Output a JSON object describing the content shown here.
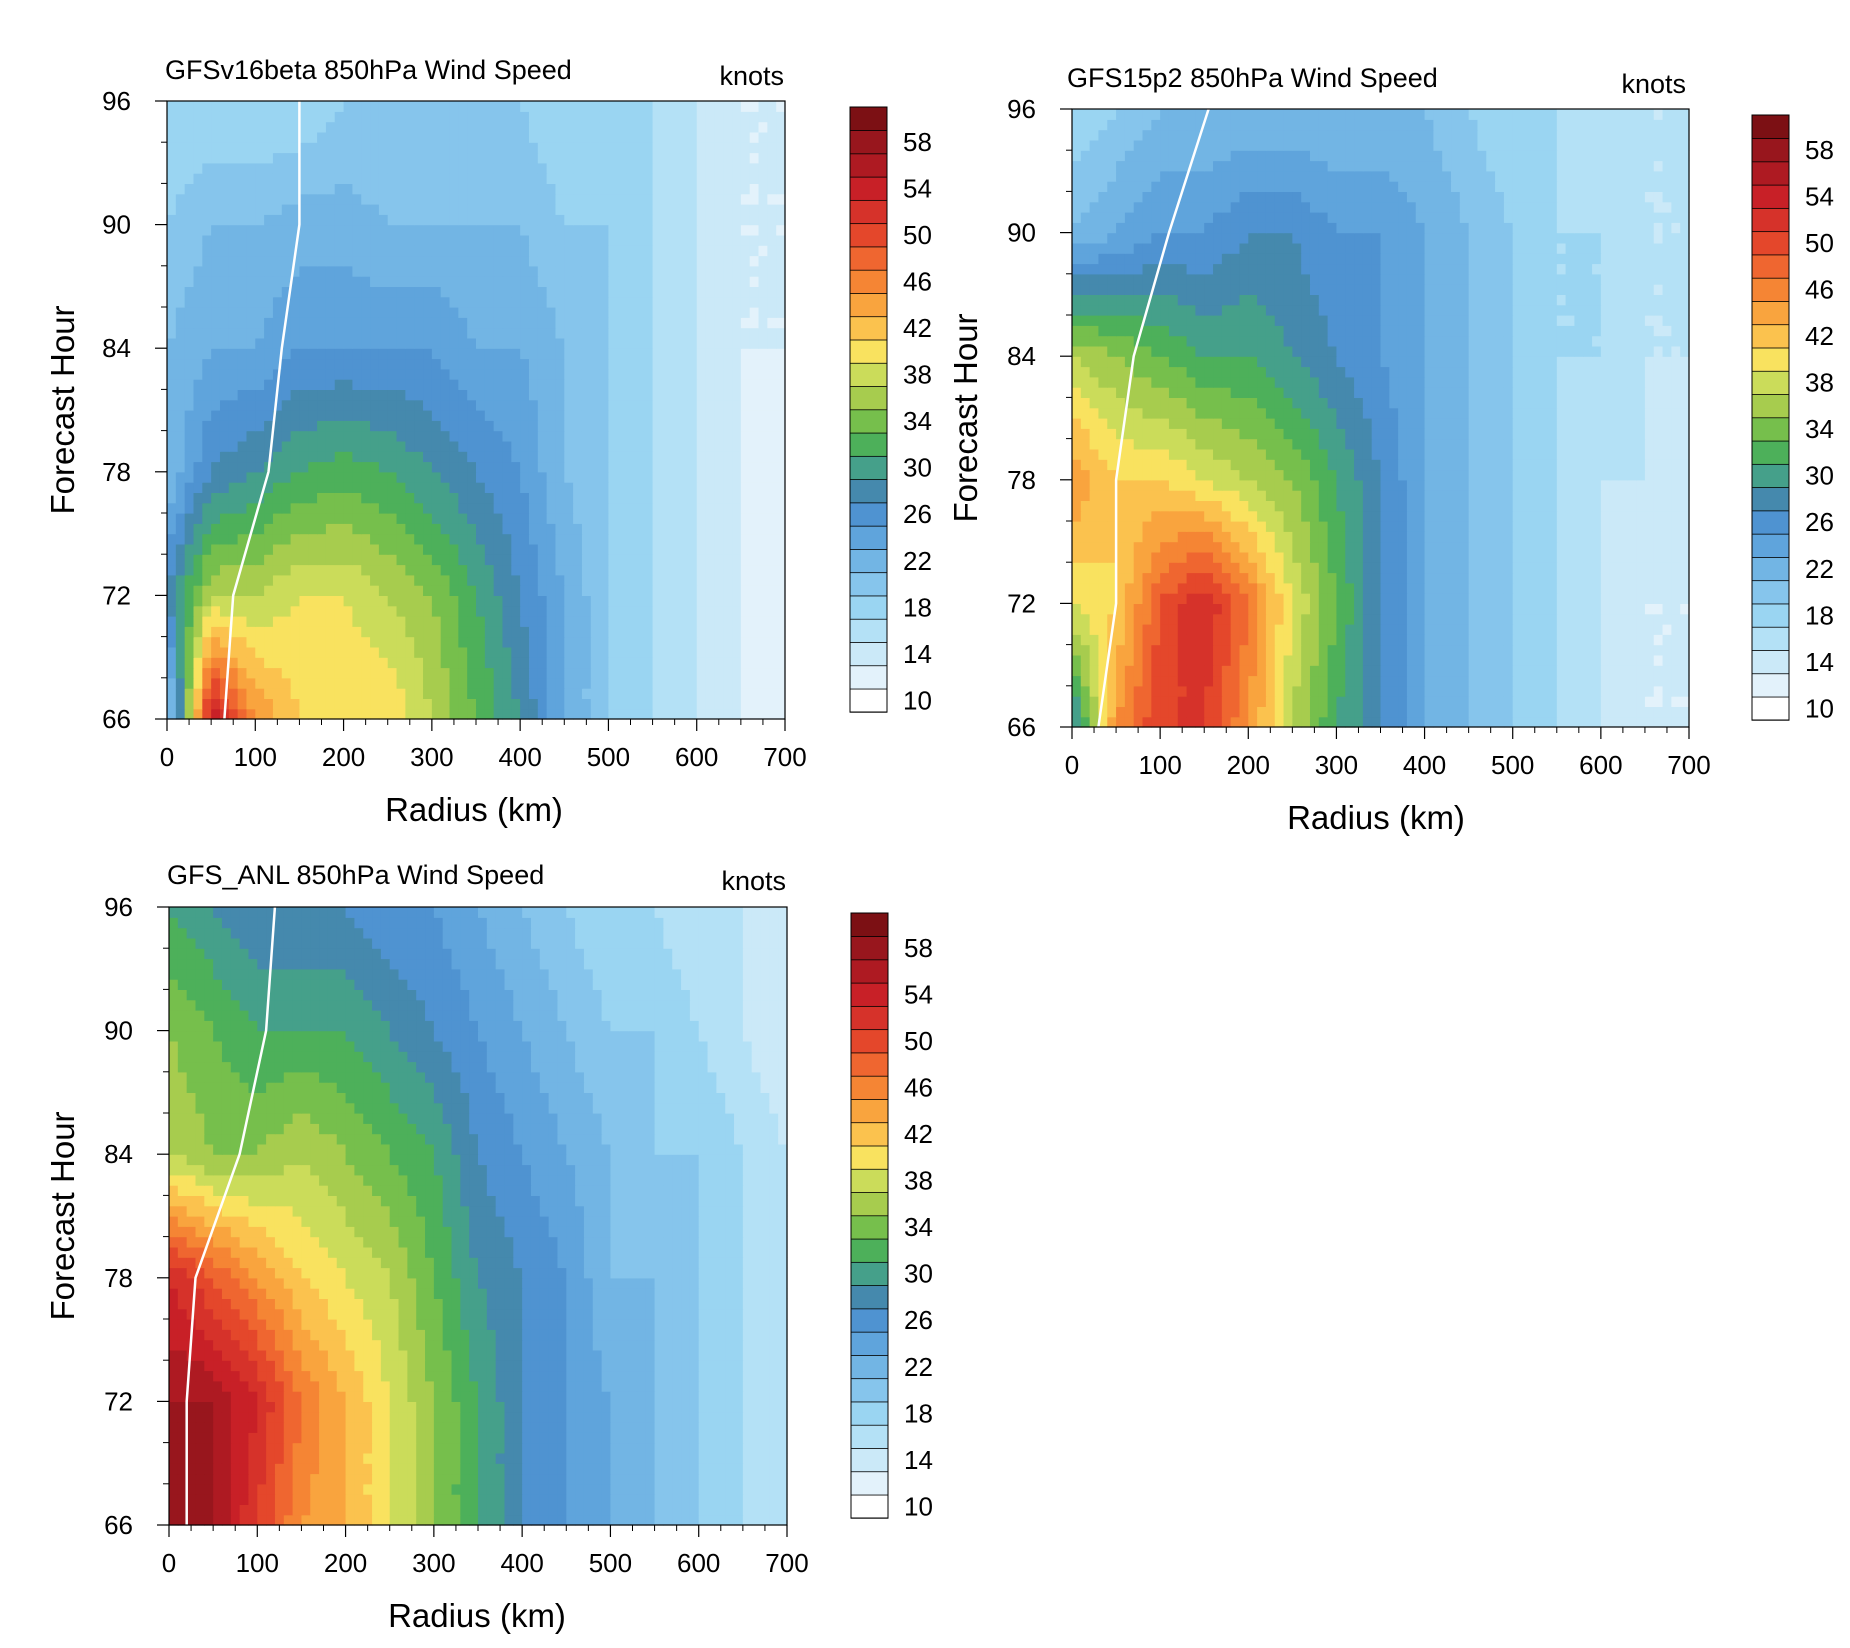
{
  "colorbar": {
    "levels": [
      10,
      12,
      14,
      16,
      18,
      20,
      22,
      24,
      26,
      28,
      30,
      32,
      34,
      36,
      38,
      40,
      42,
      44,
      46,
      48,
      50,
      52,
      54,
      56,
      58,
      60
    ],
    "tick_labels": [
      "10",
      "14",
      "18",
      "22",
      "26",
      "30",
      "34",
      "38",
      "42",
      "46",
      "50",
      "54",
      "58"
    ],
    "colors": [
      "#ffffff",
      "#e3f2fb",
      "#cbe9f8",
      "#b4e1f6",
      "#9ad5f2",
      "#86c5ec",
      "#72b5e4",
      "#5fa4dc",
      "#4f93d1",
      "#4589ad",
      "#45a08a",
      "#4db05a",
      "#76bf4c",
      "#a7cc4e",
      "#cbdc5a",
      "#f9e25f",
      "#fbc24e",
      "#f9a43e",
      "#f58534",
      "#ef6630",
      "#e4472b",
      "#d6322a",
      "#c82027",
      "#ae1a22",
      "#98161d",
      "#7c1014"
    ]
  },
  "chart_data": [
    {
      "type": "heatmap",
      "title": "GFSv16beta 850hPa Wind Speed",
      "units": "knots",
      "xlabel": "Radius (km)",
      "ylabel": "Forecast Hour",
      "xlim": [
        0,
        700
      ],
      "ylim": [
        66,
        96
      ],
      "x_ticks": [
        "0",
        "100",
        "200",
        "300",
        "400",
        "500",
        "600",
        "700"
      ],
      "y_ticks": [
        "66",
        "72",
        "78",
        "84",
        "90",
        "96"
      ],
      "x_grid": [
        0,
        50,
        100,
        150,
        200,
        250,
        300,
        350,
        400,
        450,
        500,
        550,
        600,
        650,
        700
      ],
      "y_grid": [
        66,
        72,
        78,
        84,
        90,
        96
      ],
      "z": [
        [
          18,
          56,
          46,
          42,
          42,
          42,
          38,
          34,
          30,
          24,
          20,
          18,
          16,
          14,
          12
        ],
        [
          28,
          38,
          38,
          40,
          40,
          38,
          36,
          32,
          28,
          24,
          20,
          18,
          16,
          14,
          13
        ],
        [
          22,
          28,
          30,
          32,
          33,
          32,
          30,
          28,
          26,
          22,
          20,
          18,
          16,
          14,
          13
        ],
        [
          22,
          24,
          24,
          26,
          26,
          26,
          26,
          24,
          24,
          22,
          20,
          18,
          16,
          14,
          14
        ],
        [
          20,
          22,
          22,
          23,
          23,
          22,
          22,
          22,
          22,
          20,
          20,
          18,
          16,
          14,
          14
        ],
        [
          18,
          18,
          18,
          18,
          20,
          20,
          20,
          20,
          20,
          18,
          18,
          18,
          16,
          14,
          14
        ]
      ],
      "rmw": {
        "x": [
          65,
          75,
          115,
          130,
          150,
          150
        ],
        "y": [
          66,
          72,
          78,
          84,
          90,
          96
        ]
      }
    },
    {
      "type": "heatmap",
      "title": "GFS15p2 850hPa Wind Speed",
      "units": "knots",
      "xlabel": "Radius (km)",
      "ylabel": "Forecast Hour",
      "xlim": [
        0,
        700
      ],
      "ylim": [
        66,
        96
      ],
      "x_ticks": [
        "0",
        "100",
        "200",
        "300",
        "400",
        "500",
        "600",
        "700"
      ],
      "y_ticks": [
        "66",
        "72",
        "78",
        "84",
        "90",
        "96"
      ],
      "x_grid": [
        0,
        50,
        100,
        150,
        200,
        250,
        300,
        350,
        400,
        450,
        500,
        550,
        600,
        650,
        700
      ],
      "y_grid": [
        66,
        72,
        78,
        84,
        90,
        96
      ],
      "z": [
        [
          28,
          46,
          52,
          52,
          46,
          38,
          32,
          28,
          24,
          22,
          20,
          18,
          16,
          14,
          14
        ],
        [
          40,
          42,
          50,
          54,
          48,
          40,
          34,
          28,
          24,
          22,
          20,
          18,
          16,
          14,
          14
        ],
        [
          46,
          42,
          42,
          40,
          38,
          36,
          32,
          28,
          24,
          22,
          20,
          18,
          16,
          16,
          14
        ],
        [
          38,
          36,
          34,
          32,
          32,
          30,
          28,
          26,
          24,
          22,
          20,
          18,
          18,
          16,
          16
        ],
        [
          22,
          24,
          26,
          26,
          28,
          28,
          26,
          26,
          24,
          22,
          20,
          18,
          18,
          16,
          16
        ],
        [
          18,
          20,
          22,
          22,
          22,
          22,
          22,
          22,
          22,
          20,
          18,
          18,
          16,
          16,
          16
        ]
      ],
      "rmw": {
        "x": [
          30,
          50,
          50,
          70,
          110,
          155
        ],
        "y": [
          66,
          72,
          78,
          84,
          90,
          96
        ]
      }
    },
    {
      "type": "heatmap",
      "title": "GFS_ANL 850hPa Wind Speed",
      "units": "knots",
      "xlabel": "Radius (km)",
      "ylabel": "Forecast Hour",
      "xlim": [
        0,
        700
      ],
      "ylim": [
        66,
        96
      ],
      "x_ticks": [
        "0",
        "100",
        "200",
        "300",
        "400",
        "500",
        "600",
        "700"
      ],
      "y_ticks": [
        "66",
        "72",
        "78",
        "84",
        "90",
        "96"
      ],
      "x_grid": [
        0,
        50,
        100,
        150,
        200,
        250,
        300,
        350,
        400,
        450,
        500,
        550,
        600,
        650,
        700
      ],
      "y_grid": [
        66,
        72,
        78,
        84,
        90,
        96
      ],
      "z": [
        [
          60,
          58,
          52,
          46,
          44,
          40,
          36,
          32,
          28,
          26,
          24,
          22,
          20,
          18,
          16
        ],
        [
          58,
          58,
          54,
          48,
          44,
          40,
          36,
          32,
          28,
          26,
          24,
          22,
          20,
          18,
          16
        ],
        [
          54,
          50,
          46,
          42,
          40,
          38,
          34,
          30,
          28,
          26,
          22,
          22,
          20,
          18,
          16
        ],
        [
          38,
          36,
          36,
          38,
          36,
          34,
          32,
          28,
          26,
          24,
          22,
          20,
          20,
          18,
          16
        ],
        [
          36,
          34,
          32,
          32,
          32,
          30,
          28,
          26,
          24,
          22,
          20,
          20,
          18,
          16,
          14
        ],
        [
          32,
          30,
          28,
          28,
          28,
          26,
          26,
          24,
          22,
          20,
          18,
          18,
          16,
          16,
          16
        ]
      ],
      "rmw": {
        "x": [
          20,
          20,
          30,
          80,
          110,
          120
        ],
        "y": [
          66,
          72,
          78,
          84,
          90,
          96
        ]
      }
    }
  ]
}
